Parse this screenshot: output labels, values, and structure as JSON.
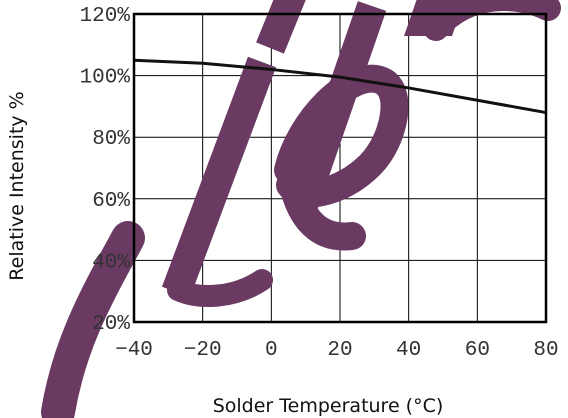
{
  "chart_data": {
    "type": "line",
    "title": "",
    "xlabel": "Solder Temperature (°C)",
    "ylabel": "Relative Intensity %",
    "xlim": [
      -40,
      80
    ],
    "ylim": [
      20,
      120
    ],
    "x_ticks": [
      -40,
      -20,
      0,
      20,
      40,
      60,
      80
    ],
    "x_tick_labels": [
      "−40",
      "−20",
      "0",
      "20",
      "40",
      "60",
      "80"
    ],
    "y_ticks": [
      20,
      40,
      60,
      80,
      100,
      120
    ],
    "y_tick_labels": [
      "20%",
      "40%",
      "60%",
      "80%",
      "100%",
      "120%"
    ],
    "grid": true,
    "series": [
      {
        "x": [
          -40,
          -20,
          0,
          20,
          40,
          60,
          80
        ],
        "y": [
          105,
          104,
          102,
          99.5,
          96,
          92,
          88
        ]
      }
    ],
    "watermark": "Lite",
    "colors": {
      "line": "#111111",
      "grid": "#000000",
      "watermark": "#6b3a63"
    }
  }
}
